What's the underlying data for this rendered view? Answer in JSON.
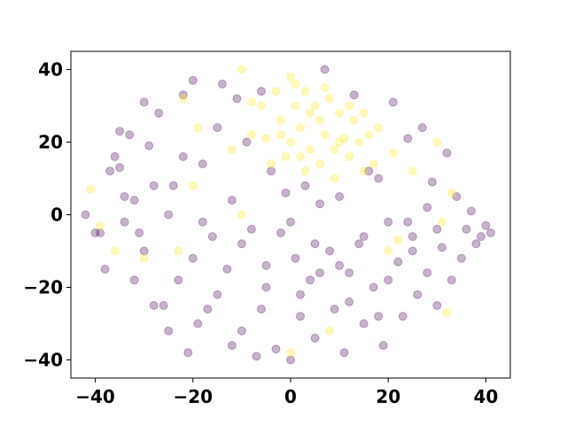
{
  "chart_data": {
    "type": "scatter",
    "title": "",
    "xlabel": "",
    "ylabel": "",
    "xlim": [
      -45,
      45
    ],
    "ylim": [
      -45,
      45
    ],
    "xticks": [
      -40,
      -20,
      0,
      20,
      40
    ],
    "yticks": [
      -40,
      -20,
      0,
      20,
      40
    ],
    "xtick_labels": [
      "−40",
      "−20",
      "0",
      "20",
      "40"
    ],
    "ytick_labels": [
      "−40",
      "−20",
      "0",
      "20",
      "40"
    ],
    "grid": false,
    "legend": "none",
    "marker_alpha": 0.3,
    "series": [
      {
        "color": "#440154",
        "points": [
          [
            -42,
            0
          ],
          [
            -40,
            -5
          ],
          [
            -39,
            -5
          ],
          [
            -38,
            -15
          ],
          [
            -37,
            12
          ],
          [
            -36,
            16
          ],
          [
            -35,
            23
          ],
          [
            -35,
            13
          ],
          [
            -34,
            -2
          ],
          [
            -34,
            5
          ],
          [
            -33,
            22
          ],
          [
            -32,
            4
          ],
          [
            -31,
            -5
          ],
          [
            -30,
            31
          ],
          [
            -29,
            19
          ],
          [
            -28,
            -25
          ],
          [
            -27,
            28
          ],
          [
            -26,
            -25
          ],
          [
            -25,
            -32
          ],
          [
            -24,
            8
          ],
          [
            -23,
            -18
          ],
          [
            -22,
            33
          ],
          [
            -21,
            -38
          ],
          [
            -20,
            37
          ],
          [
            -19,
            -30
          ],
          [
            -18,
            14
          ],
          [
            -17,
            -26
          ],
          [
            -16,
            -6
          ],
          [
            -15,
            24
          ],
          [
            -14,
            36
          ],
          [
            -13,
            -15
          ],
          [
            -12,
            -36
          ],
          [
            -11,
            32
          ],
          [
            -10,
            -32
          ],
          [
            -9,
            20
          ],
          [
            -8,
            -4
          ],
          [
            -7,
            -39
          ],
          [
            -6,
            34
          ],
          [
            -5,
            -20
          ],
          [
            -4,
            12
          ],
          [
            -3,
            -37
          ],
          [
            -2,
            -5
          ],
          [
            -1,
            6
          ],
          [
            0,
            -40
          ],
          [
            1,
            -12
          ],
          [
            2,
            -28
          ],
          [
            3,
            8
          ],
          [
            4,
            -18
          ],
          [
            5,
            -34
          ],
          [
            6,
            3
          ],
          [
            7,
            40
          ],
          [
            8,
            -10
          ],
          [
            9,
            -26
          ],
          [
            10,
            5
          ],
          [
            11,
            -38
          ],
          [
            12,
            -16
          ],
          [
            13,
            33
          ],
          [
            14,
            -8
          ],
          [
            15,
            -30
          ],
          [
            16,
            12
          ],
          [
            17,
            -20
          ],
          [
            18,
            10
          ],
          [
            19,
            -36
          ],
          [
            20,
            -2
          ],
          [
            21,
            31
          ],
          [
            22,
            -13
          ],
          [
            23,
            -28
          ],
          [
            24,
            21
          ],
          [
            25,
            -6
          ],
          [
            26,
            -22
          ],
          [
            27,
            24
          ],
          [
            28,
            -16
          ],
          [
            29,
            9
          ],
          [
            30,
            -25
          ],
          [
            31,
            -9
          ],
          [
            32,
            17
          ],
          [
            33,
            -18
          ],
          [
            34,
            5
          ],
          [
            35,
            -12
          ],
          [
            36,
            -4
          ],
          [
            37,
            1
          ],
          [
            38,
            -8
          ],
          [
            39,
            -6
          ],
          [
            40,
            -3
          ],
          [
            41,
            -5
          ],
          [
            -30,
            -10
          ],
          [
            -25,
            0
          ],
          [
            -20,
            -12
          ],
          [
            -15,
            -22
          ],
          [
            -10,
            -8
          ],
          [
            -5,
            -14
          ],
          [
            0,
            -2
          ],
          [
            5,
            -8
          ],
          [
            10,
            -14
          ],
          [
            15,
            -6
          ],
          [
            20,
            -18
          ],
          [
            25,
            -10
          ],
          [
            30,
            -4
          ],
          [
            -28,
            8
          ],
          [
            -22,
            16
          ],
          [
            -18,
            -2
          ],
          [
            -12,
            4
          ],
          [
            -6,
            -26
          ],
          [
            2,
            -22
          ],
          [
            6,
            -16
          ],
          [
            12,
            -24
          ],
          [
            18,
            -28
          ],
          [
            24,
            -2
          ],
          [
            28,
            2
          ],
          [
            -32,
            -18
          ]
        ]
      },
      {
        "color": "#fde725",
        "points": [
          [
            -41,
            7
          ],
          [
            -39,
            -3
          ],
          [
            -36,
            -10
          ],
          [
            -30,
            -12
          ],
          [
            -23,
            -10
          ],
          [
            -22,
            32
          ],
          [
            -20,
            8
          ],
          [
            -19,
            24
          ],
          [
            -10,
            40
          ],
          [
            -8,
            31
          ],
          [
            -5,
            21
          ],
          [
            -3,
            34
          ],
          [
            -2,
            26
          ],
          [
            0,
            38
          ],
          [
            1,
            30
          ],
          [
            2,
            24
          ],
          [
            3,
            34
          ],
          [
            4,
            18
          ],
          [
            5,
            30
          ],
          [
            6,
            26
          ],
          [
            7,
            22
          ],
          [
            8,
            32
          ],
          [
            9,
            18
          ],
          [
            10,
            28
          ],
          [
            11,
            21
          ],
          [
            12,
            16
          ],
          [
            13,
            26
          ],
          [
            14,
            20
          ],
          [
            15,
            12
          ],
          [
            16,
            22
          ],
          [
            17,
            14
          ],
          [
            18,
            24
          ],
          [
            -1,
            16
          ],
          [
            -4,
            14
          ],
          [
            0,
            20
          ],
          [
            3,
            12
          ],
          [
            6,
            14
          ],
          [
            9,
            10
          ],
          [
            -6,
            30
          ],
          [
            -8,
            22
          ],
          [
            21,
            17
          ],
          [
            25,
            12
          ],
          [
            30,
            20
          ],
          [
            31,
            -2
          ],
          [
            33,
            6
          ],
          [
            32,
            -27
          ],
          [
            22,
            -7
          ],
          [
            -10,
            0
          ],
          [
            0,
            -38
          ],
          [
            8,
            -32
          ],
          [
            20,
            -10
          ],
          [
            -12,
            18
          ],
          [
            1,
            36
          ],
          [
            7,
            35
          ],
          [
            12,
            30
          ],
          [
            4,
            28
          ],
          [
            2,
            16
          ],
          [
            -2,
            22
          ],
          [
            10,
            20
          ],
          [
            15,
            28
          ]
        ]
      }
    ]
  }
}
